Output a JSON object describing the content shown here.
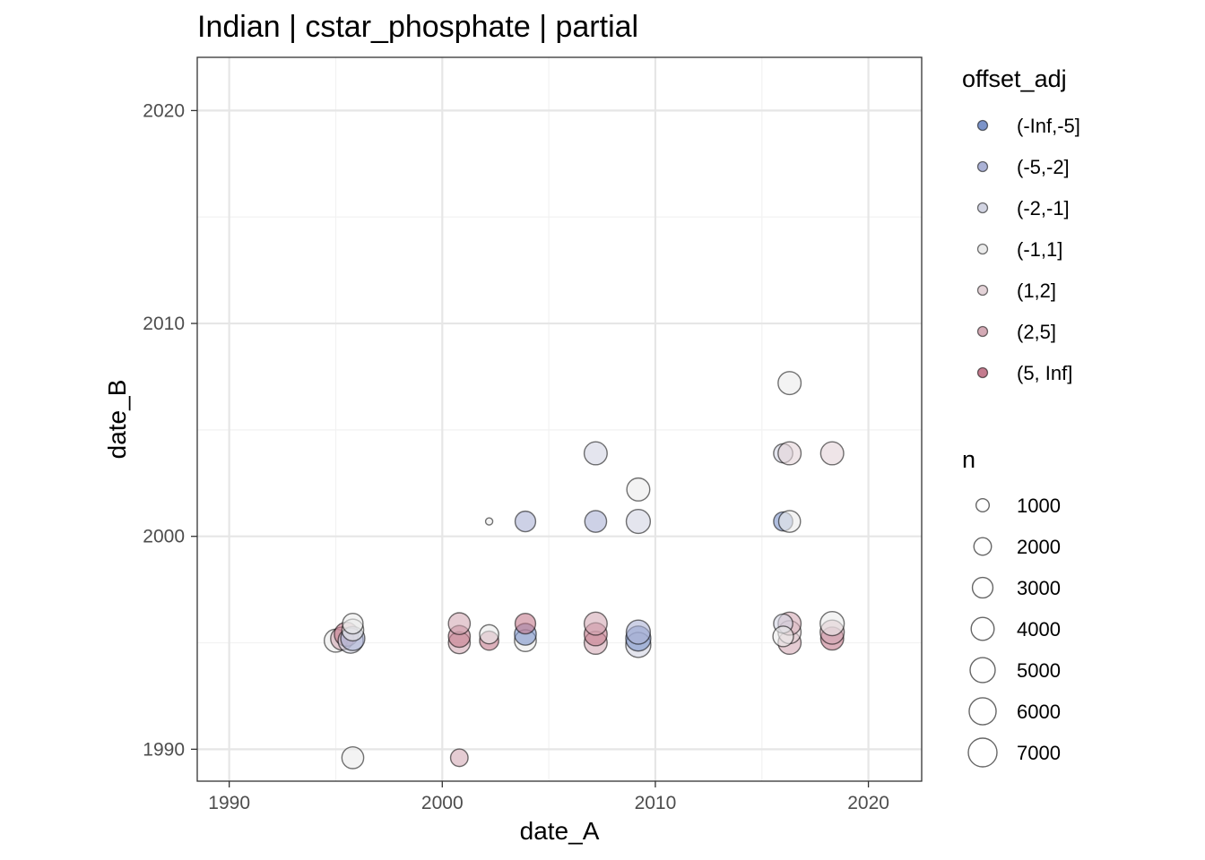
{
  "chart_data": {
    "type": "scatter",
    "title": "Indian | cstar_phosphate | partial",
    "xlabel": "date_A",
    "ylabel": "date_B",
    "xlim": [
      1988.5,
      2022.5
    ],
    "ylim": [
      1988.5,
      2022.5
    ],
    "x_ticks": [
      1990,
      2000,
      2010,
      2020
    ],
    "y_ticks": [
      1990,
      2000,
      2010,
      2020
    ],
    "grid": true,
    "legend_position": "right",
    "color_legend": {
      "title": "offset_adj",
      "entries": [
        {
          "label": "(-Inf,-5]",
          "color": "#7b93c9"
        },
        {
          "label": "(-5,-2]",
          "color": "#abb2d6"
        },
        {
          "label": "(-2,-1]",
          "color": "#d2d4e2"
        },
        {
          "label": "(-1,1]",
          "color": "#ebebeb"
        },
        {
          "label": "(1,2]",
          "color": "#e4d3d8"
        },
        {
          "label": "(2,5]",
          "color": "#d4aab5"
        },
        {
          "label": "(5, Inf]",
          "color": "#c47b8e"
        }
      ]
    },
    "size_legend": {
      "title": "n",
      "entries": [
        {
          "label": "1000",
          "value": 1000
        },
        {
          "label": "2000",
          "value": 2000
        },
        {
          "label": "3000",
          "value": 3000
        },
        {
          "label": "4000",
          "value": 4000
        },
        {
          "label": "5000",
          "value": 5000
        },
        {
          "label": "6000",
          "value": 6000
        },
        {
          "label": "7000",
          "value": 7000
        }
      ]
    },
    "points": [
      {
        "x": 1995.0,
        "y": 1995.1,
        "n": 4000,
        "group": "(-1,1]"
      },
      {
        "x": 1995.3,
        "y": 1995.2,
        "n": 4000,
        "group": "(2,5]"
      },
      {
        "x": 1995.5,
        "y": 1995.4,
        "n": 4500,
        "group": "(5, Inf]"
      },
      {
        "x": 1995.7,
        "y": 1995.1,
        "n": 5000,
        "group": "(-2,-1]"
      },
      {
        "x": 1995.8,
        "y": 1995.2,
        "n": 4500,
        "group": "(-5,-2]"
      },
      {
        "x": 1995.8,
        "y": 1995.6,
        "n": 3500,
        "group": "(-1,1]"
      },
      {
        "x": 1995.8,
        "y": 1995.9,
        "n": 3000,
        "group": "(-1,1]"
      },
      {
        "x": 1995.8,
        "y": 1989.6,
        "n": 3500,
        "group": "(-1,1]"
      },
      {
        "x": 2000.8,
        "y": 1995.0,
        "n": 3500,
        "group": "(2,5]"
      },
      {
        "x": 2000.8,
        "y": 1995.3,
        "n": 3500,
        "group": "(5, Inf]"
      },
      {
        "x": 2000.8,
        "y": 1995.9,
        "n": 3500,
        "group": "(2,5]"
      },
      {
        "x": 2000.8,
        "y": 1989.6,
        "n": 2000,
        "group": "(2,5]"
      },
      {
        "x": 2002.2,
        "y": 1995.1,
        "n": 2500,
        "group": "(5, Inf]"
      },
      {
        "x": 2002.2,
        "y": 1995.4,
        "n": 2500,
        "group": "(-1,1]"
      },
      {
        "x": 2002.2,
        "y": 2000.7,
        "n": 500,
        "group": "(-1,1]"
      },
      {
        "x": 2003.9,
        "y": 1995.1,
        "n": 3500,
        "group": "(-1,1]"
      },
      {
        "x": 2003.9,
        "y": 1995.4,
        "n": 3500,
        "group": "(-Inf,-5]"
      },
      {
        "x": 2003.9,
        "y": 1995.9,
        "n": 3000,
        "group": "(5, Inf]"
      },
      {
        "x": 2003.9,
        "y": 2000.7,
        "n": 3000,
        "group": "(-5,-2]"
      },
      {
        "x": 2007.2,
        "y": 1995.0,
        "n": 4000,
        "group": "(2,5]"
      },
      {
        "x": 2007.2,
        "y": 1995.4,
        "n": 4000,
        "group": "(5, Inf]"
      },
      {
        "x": 2007.2,
        "y": 1995.9,
        "n": 4000,
        "group": "(2,5]"
      },
      {
        "x": 2007.2,
        "y": 2000.7,
        "n": 3500,
        "group": "(-5,-2]"
      },
      {
        "x": 2007.2,
        "y": 2003.9,
        "n": 4000,
        "group": "(-2,-1]"
      },
      {
        "x": 2009.2,
        "y": 1994.9,
        "n": 5000,
        "group": "(-2,-1]"
      },
      {
        "x": 2009.2,
        "y": 1995.2,
        "n": 5000,
        "group": "(-Inf,-5]"
      },
      {
        "x": 2009.2,
        "y": 1995.5,
        "n": 4500,
        "group": "(-5,-2]"
      },
      {
        "x": 2009.2,
        "y": 2000.7,
        "n": 4500,
        "group": "(-2,-1]"
      },
      {
        "x": 2009.2,
        "y": 2002.2,
        "n": 4000,
        "group": "(-1,1]"
      },
      {
        "x": 2016.3,
        "y": 1995.0,
        "n": 4000,
        "group": "(2,5]"
      },
      {
        "x": 2016.3,
        "y": 1995.5,
        "n": 4000,
        "group": "(1,2]"
      },
      {
        "x": 2016.3,
        "y": 1995.9,
        "n": 4000,
        "group": "(2,5]"
      },
      {
        "x": 2016.0,
        "y": 1995.9,
        "n": 2500,
        "group": "(-2,-1]"
      },
      {
        "x": 2016.0,
        "y": 1995.3,
        "n": 3000,
        "group": "(-1,1]"
      },
      {
        "x": 2016.0,
        "y": 2000.7,
        "n": 2500,
        "group": "(-Inf,-5]"
      },
      {
        "x": 2016.3,
        "y": 2000.7,
        "n": 3500,
        "group": "(-1,1]"
      },
      {
        "x": 2016.0,
        "y": 2003.9,
        "n": 2500,
        "group": "(-2,-1]"
      },
      {
        "x": 2016.3,
        "y": 2003.9,
        "n": 4000,
        "group": "(1,2]"
      },
      {
        "x": 2016.3,
        "y": 2007.2,
        "n": 4000,
        "group": "(-1,1]"
      },
      {
        "x": 2018.3,
        "y": 1995.2,
        "n": 4000,
        "group": "(5, Inf]"
      },
      {
        "x": 2018.3,
        "y": 1995.5,
        "n": 4500,
        "group": "(2,5]"
      },
      {
        "x": 2018.3,
        "y": 1995.9,
        "n": 4500,
        "group": "(-1,1]"
      },
      {
        "x": 2018.3,
        "y": 2003.9,
        "n": 4000,
        "group": "(1,2]"
      }
    ]
  }
}
